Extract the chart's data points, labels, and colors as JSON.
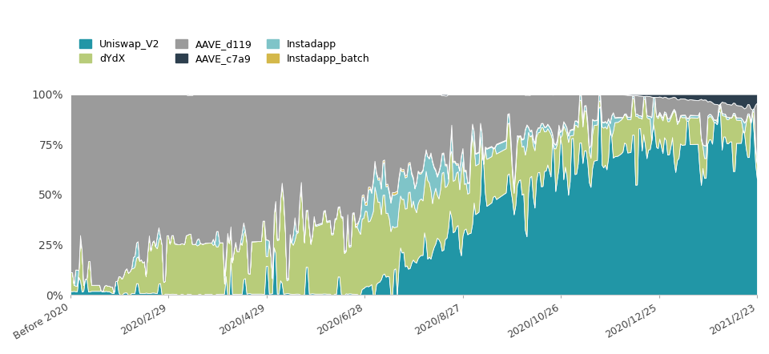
{
  "colors": {
    "Uniswap_V2": "#2196A6",
    "AAVE_c7a9": "#2D3F4E",
    "dYdX": "#B8CC7A",
    "Instadapp": "#7FC4C8",
    "AAVE_d119": "#9B9B9B",
    "Instadapp_batch": "#D4B84A"
  },
  "ytick_labels": [
    "0%",
    "25%",
    "50%",
    "75%",
    "100%"
  ],
  "ytick_vals": [
    0.0,
    0.25,
    0.5,
    0.75,
    1.0
  ],
  "xtick_labels": [
    "Before 2020",
    "2020/2/29",
    "2020/4/29",
    "2020/6/28",
    "2020/8/27",
    "2020/10/26",
    "2020/12/25",
    "2021/2/23"
  ],
  "background_color": "#FFFFFF",
  "n_points": 430,
  "stack_order": [
    "Uniswap_V2",
    "dYdX",
    "Instadapp",
    "Instadapp_batch",
    "AAVE_d119",
    "AAVE_c7a9"
  ]
}
